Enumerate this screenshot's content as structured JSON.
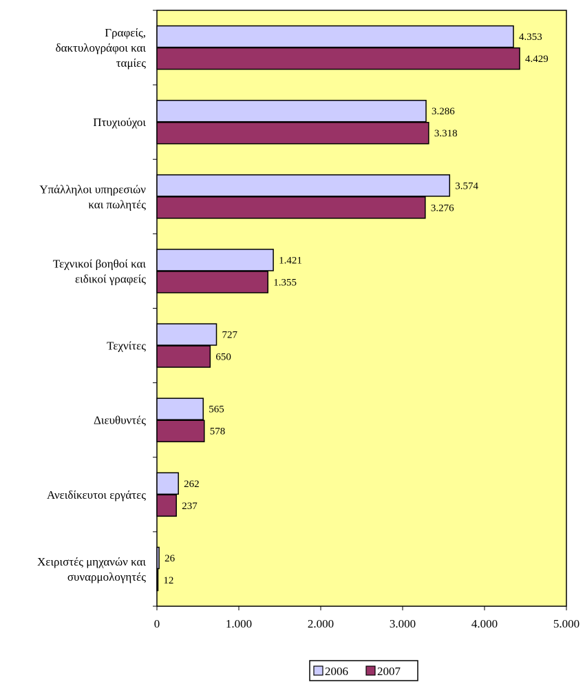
{
  "chart_data": {
    "type": "bar",
    "orientation": "horizontal",
    "categories": [
      [
        "Γραφείς,",
        "δακτυλογράφοι και",
        "ταμίες"
      ],
      [
        "Πτυχιούχοι"
      ],
      [
        "Υπάλληλοι υπηρεσιών",
        "και πωλητές"
      ],
      [
        "Τεχνικοί βοηθοί και",
        "ειδικοί γραφείς"
      ],
      [
        "Τεχνίτες"
      ],
      [
        "Διευθυντές"
      ],
      [
        "Ανειδίκευτοι εργάτες"
      ],
      [
        "Χειριστές μηχανών και",
        "συναρμολογητές"
      ]
    ],
    "series": [
      {
        "name": "2006",
        "color": "#CCCCFF",
        "values": [
          4353,
          3286,
          3574,
          1421,
          727,
          565,
          262,
          26
        ],
        "labels": [
          "4.353",
          "3.286",
          "3.574",
          "1.421",
          "727",
          "565",
          "262",
          "26"
        ]
      },
      {
        "name": "2007",
        "color": "#993366",
        "values": [
          4429,
          3318,
          3276,
          1355,
          650,
          578,
          237,
          12
        ],
        "labels": [
          "4.429",
          "3.318",
          "3.276",
          "1.355",
          "650",
          "578",
          "237",
          "12"
        ]
      }
    ],
    "xlim": [
      0,
      5000
    ],
    "xticks": [
      0,
      1000,
      2000,
      3000,
      4000,
      5000
    ],
    "xtick_labels": [
      "0",
      "1.000",
      "2.000",
      "3.000",
      "4.000",
      "5.000"
    ],
    "plot_background": "#FFFF99",
    "grid": false,
    "legend_position": "bottom"
  }
}
